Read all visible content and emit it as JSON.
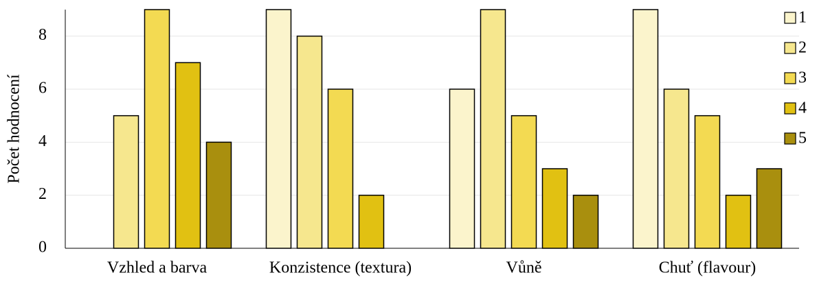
{
  "chart_data": {
    "type": "bar",
    "y_label": "Počet hodnocení",
    "categories": [
      "Vzhled a barva",
      "Konzistence (textura)",
      "Vůně",
      "Chuť (flavour)"
    ],
    "series": [
      {
        "name": "1",
        "color": "#fbf4cc",
        "values": [
          0,
          9,
          6,
          9
        ]
      },
      {
        "name": "2",
        "color": "#f6e78e",
        "values": [
          5,
          8,
          9,
          6
        ]
      },
      {
        "name": "3",
        "color": "#f3da52",
        "values": [
          9,
          6,
          5,
          5
        ]
      },
      {
        "name": "4",
        "color": "#e1c112",
        "values": [
          7,
          2,
          3,
          2
        ]
      },
      {
        "name": "5",
        "color": "#a98f0e",
        "values": [
          4,
          0,
          2,
          3
        ]
      }
    ],
    "ylim": [
      0,
      9
    ],
    "yticks": [
      0,
      2,
      4,
      6,
      8
    ],
    "grid": true,
    "legend": "right"
  }
}
